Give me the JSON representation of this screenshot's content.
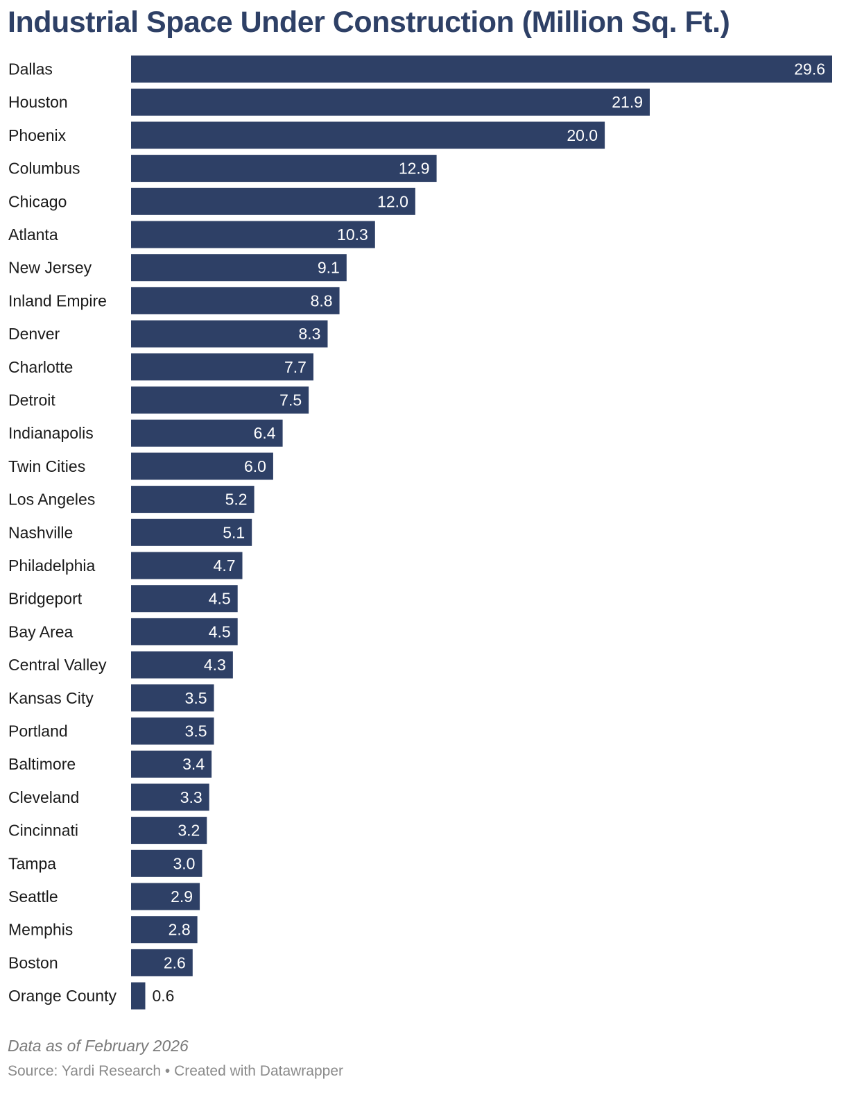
{
  "header": {
    "title": "Industrial Space Under Construction (Million Sq. Ft.)"
  },
  "footer": {
    "note": "Data as of February 2026",
    "source": "Source: Yardi Research",
    "separator": "•",
    "credit": "Created with Datawrapper"
  },
  "colors": {
    "bar": "#2e4066",
    "value_inside": "#ffffff",
    "value_outside": "#1a1a1a",
    "title": "#2e4066"
  },
  "chart_data": {
    "type": "bar",
    "orientation": "horizontal",
    "title": "Industrial Space Under Construction (Million Sq. Ft.)",
    "xlabel": "",
    "ylabel": "",
    "grid": false,
    "legend": "none",
    "xlim": [
      0,
      29.6
    ],
    "categories": [
      "Dallas",
      "Houston",
      "Phoenix",
      "Columbus",
      "Chicago",
      "Atlanta",
      "New Jersey",
      "Inland Empire",
      "Denver",
      "Charlotte",
      "Detroit",
      "Indianapolis",
      "Twin Cities",
      "Los Angeles",
      "Nashville",
      "Philadelphia",
      "Bridgeport",
      "Bay Area",
      "Central Valley",
      "Kansas City",
      "Portland",
      "Baltimore",
      "Cleveland",
      "Cincinnati",
      "Tampa",
      "Seattle",
      "Memphis",
      "Boston",
      "Orange County"
    ],
    "values": [
      29.6,
      21.9,
      20.0,
      12.9,
      12.0,
      10.3,
      9.1,
      8.8,
      8.3,
      7.7,
      7.5,
      6.4,
      6.0,
      5.2,
      5.1,
      4.7,
      4.5,
      4.5,
      4.3,
      3.5,
      3.5,
      3.4,
      3.3,
      3.2,
      3.0,
      2.9,
      2.8,
      2.6,
      0.6
    ],
    "value_labels": [
      "29.6",
      "21.9",
      "20.0",
      "12.9",
      "12.0",
      "10.3",
      "9.1",
      "8.8",
      "8.3",
      "7.7",
      "7.5",
      "6.4",
      "6.0",
      "5.2",
      "5.1",
      "4.7",
      "4.5",
      "4.5",
      "4.3",
      "3.5",
      "3.5",
      "3.4",
      "3.3",
      "3.2",
      "3.0",
      "2.9",
      "2.8",
      "2.6",
      "0.6"
    ]
  }
}
